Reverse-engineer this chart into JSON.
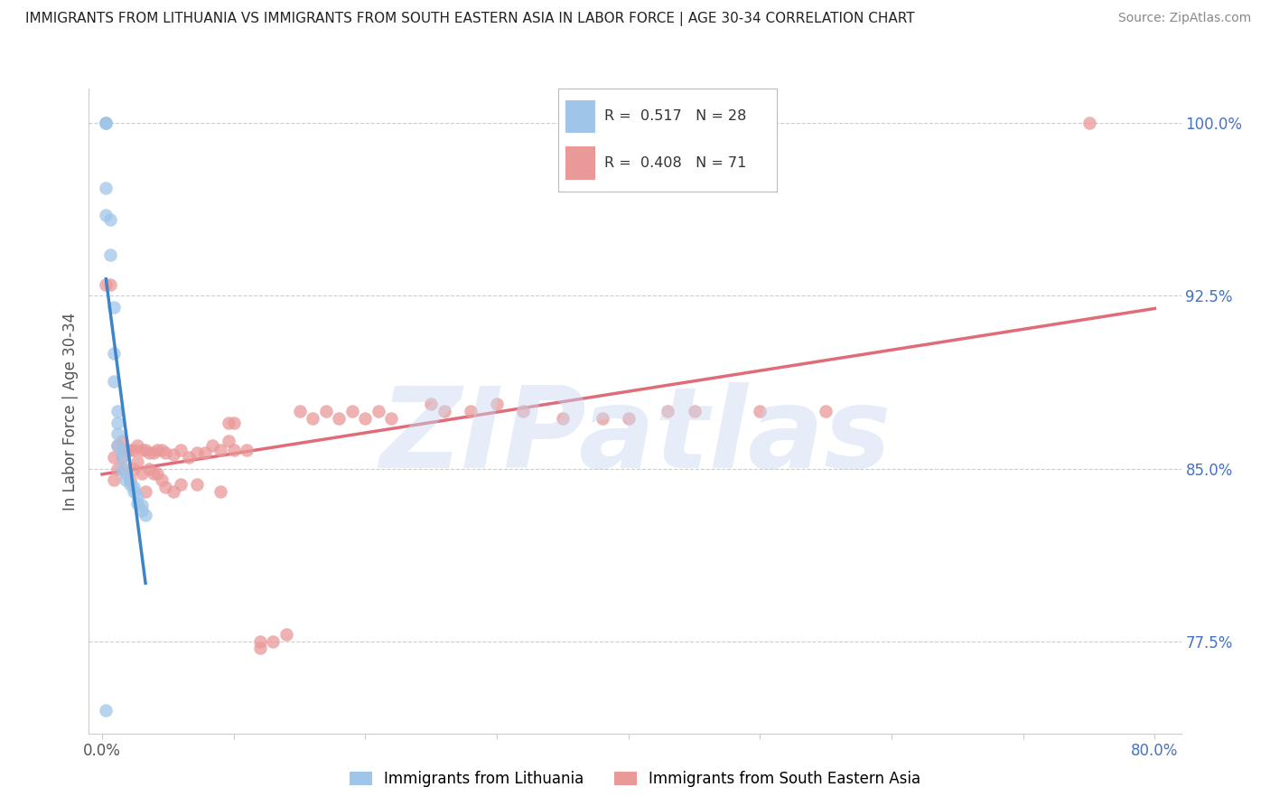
{
  "title": "IMMIGRANTS FROM LITHUANIA VS IMMIGRANTS FROM SOUTH EASTERN ASIA IN LABOR FORCE | AGE 30-34 CORRELATION CHART",
  "source": "Source: ZipAtlas.com",
  "ylabel": "In Labor Force | Age 30-34",
  "xlabel": "",
  "legend_label_blue": "Immigrants from Lithuania",
  "legend_label_pink": "Immigrants from South Eastern Asia",
  "R_blue": 0.517,
  "N_blue": 28,
  "R_pink": 0.408,
  "N_pink": 71,
  "color_blue": "#9fc5e8",
  "color_pink": "#ea9999",
  "color_blue_line": "#3d85c8",
  "color_pink_line": "#e06c7a",
  "color_right_axis": "#4472c4",
  "xlim_min": -0.01,
  "xlim_max": 0.82,
  "ylim_min": 0.735,
  "ylim_max": 1.015,
  "yticks_right": [
    0.775,
    0.85,
    0.925,
    1.0
  ],
  "yticklabels_right": [
    "77.5%",
    "85.0%",
    "92.5%",
    "100.0%"
  ],
  "xtick_positions": [
    0.0,
    0.1,
    0.2,
    0.3,
    0.4,
    0.5,
    0.6,
    0.7,
    0.8
  ],
  "xticklabels": [
    "0.0%",
    "",
    "",
    "",
    "",
    "",
    "",
    "",
    "80.0%"
  ],
  "blue_x": [
    0.003,
    0.003,
    0.003,
    0.003,
    0.003,
    0.006,
    0.006,
    0.009,
    0.009,
    0.009,
    0.012,
    0.012,
    0.012,
    0.012,
    0.015,
    0.015,
    0.015,
    0.018,
    0.018,
    0.021,
    0.024,
    0.024,
    0.027,
    0.027,
    0.03,
    0.03,
    0.033,
    0.003
  ],
  "blue_y": [
    1.0,
    1.0,
    1.0,
    0.972,
    0.96,
    0.958,
    0.943,
    0.92,
    0.9,
    0.888,
    0.875,
    0.87,
    0.865,
    0.86,
    0.858,
    0.855,
    0.85,
    0.848,
    0.845,
    0.843,
    0.842,
    0.84,
    0.838,
    0.835,
    0.834,
    0.832,
    0.83,
    0.745
  ],
  "pink_x": [
    0.003,
    0.006,
    0.009,
    0.009,
    0.012,
    0.012,
    0.015,
    0.015,
    0.018,
    0.018,
    0.021,
    0.021,
    0.024,
    0.024,
    0.027,
    0.027,
    0.03,
    0.03,
    0.033,
    0.033,
    0.036,
    0.036,
    0.039,
    0.039,
    0.042,
    0.042,
    0.045,
    0.045,
    0.048,
    0.048,
    0.054,
    0.054,
    0.06,
    0.06,
    0.066,
    0.072,
    0.072,
    0.078,
    0.084,
    0.09,
    0.09,
    0.096,
    0.096,
    0.1,
    0.1,
    0.11,
    0.12,
    0.12,
    0.13,
    0.14,
    0.15,
    0.16,
    0.17,
    0.18,
    0.19,
    0.2,
    0.21,
    0.22,
    0.25,
    0.26,
    0.28,
    0.3,
    0.32,
    0.35,
    0.38,
    0.4,
    0.43,
    0.45,
    0.5,
    0.55,
    0.75
  ],
  "pink_y": [
    0.93,
    0.93,
    0.855,
    0.845,
    0.86,
    0.85,
    0.862,
    0.855,
    0.858,
    0.85,
    0.858,
    0.845,
    0.858,
    0.85,
    0.86,
    0.853,
    0.858,
    0.848,
    0.858,
    0.84,
    0.857,
    0.85,
    0.857,
    0.848,
    0.858,
    0.848,
    0.858,
    0.845,
    0.857,
    0.842,
    0.856,
    0.84,
    0.858,
    0.843,
    0.855,
    0.857,
    0.843,
    0.857,
    0.86,
    0.858,
    0.84,
    0.862,
    0.87,
    0.858,
    0.87,
    0.858,
    0.775,
    0.772,
    0.775,
    0.778,
    0.875,
    0.872,
    0.875,
    0.872,
    0.875,
    0.872,
    0.875,
    0.872,
    0.878,
    0.875,
    0.875,
    0.878,
    0.875,
    0.872,
    0.872,
    0.872,
    0.875,
    0.875,
    0.875,
    0.875,
    1.0
  ],
  "watermark_text": "ZIPatlas",
  "background_color": "#ffffff",
  "grid_color": "#cccccc",
  "grid_linestyle": "--",
  "title_fontsize": 11,
  "source_fontsize": 10,
  "axis_label_fontsize": 12,
  "tick_fontsize": 12
}
